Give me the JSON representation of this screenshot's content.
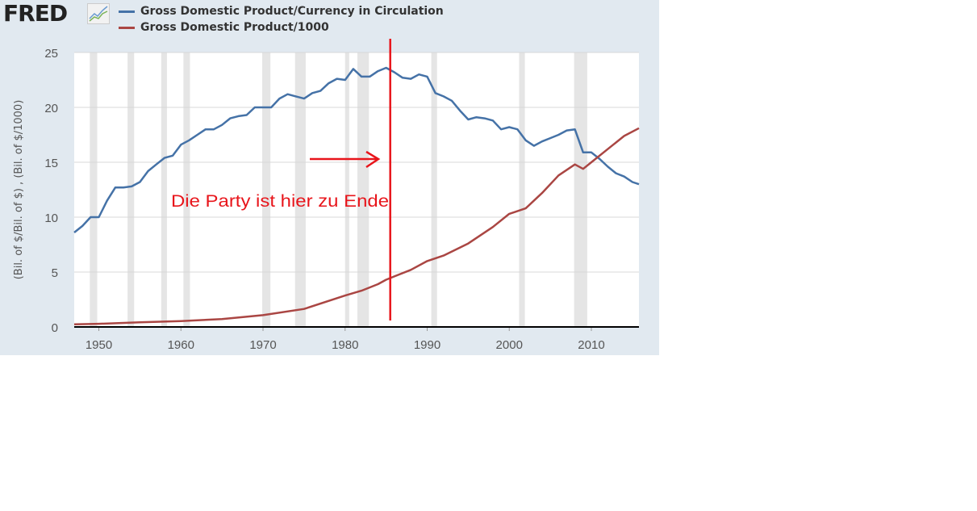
{
  "logo": {
    "text": "FRED"
  },
  "colors": {
    "series1": "#4572a7",
    "series2": "#aa4643",
    "annotation": "#e8151b",
    "recession": "#e5e5e5",
    "background": "#e1e9f0"
  },
  "chart_data": {
    "type": "line",
    "title": "",
    "ylabel": "(Bil. of $/Bil. of $) , (Bil. of $/1000)",
    "xlabel": "",
    "xlim": [
      1947,
      2015.8
    ],
    "ylim": [
      0,
      25
    ],
    "grid": true,
    "legend_position": "top-left",
    "xticks": [
      "1950",
      "1960",
      "1970",
      "1980",
      "1990",
      "2000",
      "2010"
    ],
    "yticks": [
      "0",
      "5",
      "10",
      "15",
      "20",
      "25"
    ],
    "recessions": [
      [
        1948.9,
        1949.8
      ],
      [
        1953.5,
        1954.3
      ],
      [
        1957.6,
        1958.3
      ],
      [
        1960.3,
        1961.1
      ],
      [
        1969.9,
        1970.9
      ],
      [
        1973.9,
        1975.2
      ],
      [
        1980.0,
        1980.5
      ],
      [
        1981.5,
        1982.9
      ],
      [
        1990.5,
        1991.2
      ],
      [
        2001.2,
        2001.9
      ],
      [
        2007.9,
        2009.5
      ]
    ],
    "series": [
      {
        "name": "Gross Domestic Product/Currency in Circulation",
        "x": [
          1947,
          1948,
          1949,
          1950,
          1951,
          1952,
          1953,
          1954,
          1955,
          1956,
          1957,
          1958,
          1959,
          1960,
          1961,
          1962,
          1963,
          1964,
          1965,
          1966,
          1967,
          1968,
          1969,
          1970,
          1971,
          1972,
          1973,
          1974,
          1975,
          1976,
          1977,
          1978,
          1979,
          1980,
          1981,
          1982,
          1983,
          1984,
          1985,
          1986,
          1987,
          1988,
          1989,
          1990,
          1991,
          1992,
          1993,
          1994,
          1995,
          1996,
          1997,
          1998,
          1999,
          2000,
          2001,
          2002,
          2003,
          2004,
          2005,
          2006,
          2007,
          2008,
          2009,
          2010,
          2011,
          2012,
          2013,
          2014,
          2015,
          2015.8
        ],
        "y": [
          8.6,
          9.2,
          10.0,
          10.0,
          11.5,
          12.7,
          12.7,
          12.8,
          13.2,
          14.2,
          14.8,
          15.4,
          15.6,
          16.6,
          17.0,
          17.5,
          18.0,
          18.0,
          18.4,
          19.0,
          19.2,
          19.3,
          20.0,
          20.0,
          20.0,
          20.8,
          21.2,
          21.0,
          20.8,
          21.3,
          21.5,
          22.2,
          22.6,
          22.5,
          23.5,
          22.8,
          22.8,
          23.3,
          23.6,
          23.2,
          22.7,
          22.6,
          23.0,
          22.8,
          21.3,
          21.0,
          20.6,
          19.7,
          18.9,
          19.1,
          19.0,
          18.8,
          18.0,
          18.2,
          18.0,
          17.0,
          16.5,
          16.9,
          17.2,
          17.5,
          17.9,
          18.0,
          15.9,
          15.9,
          15.3,
          14.6,
          14.0,
          13.7,
          13.2,
          13.0
        ]
      },
      {
        "name": "Gross Domestic Product/1000",
        "x": [
          1947,
          1950,
          1955,
          1960,
          1965,
          1970,
          1975,
          1980,
          1982,
          1984,
          1985,
          1986,
          1988,
          1990,
          1992,
          1995,
          1998,
          2000,
          2002,
          2004,
          2006,
          2008,
          2009,
          2010,
          2012,
          2014,
          2015.8
        ],
        "y": [
          0.24,
          0.29,
          0.42,
          0.54,
          0.72,
          1.07,
          1.64,
          2.86,
          3.3,
          3.9,
          4.3,
          4.6,
          5.2,
          6.0,
          6.5,
          7.6,
          9.1,
          10.3,
          10.8,
          12.2,
          13.8,
          14.8,
          14.4,
          15.0,
          16.2,
          17.4,
          18.1
        ]
      }
    ],
    "annotations": [
      {
        "text": "Die Party ist hier zu Ende",
        "marker_year": 1985.5
      }
    ]
  }
}
